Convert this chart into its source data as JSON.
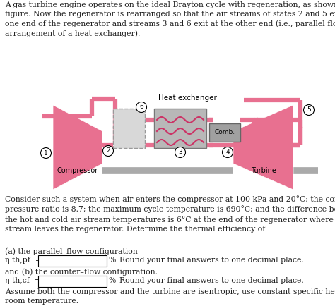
{
  "title_text": "A gas turbine engine operates on the ideal Brayton cycle with regeneration, as shown in the\nfigure. Now the regenerator is rearranged so that the air streams of states 2 and 5 enter at\none end of the regenerator and streams 3 and 6 exit at the other end (i.e., parallel flow\narrangement of a heat exchanger).",
  "body_text1": "Consider such a system when air enters the compressor at 100 kPa and 20°C; the compressor\npressure ratio is 8.7; the maximum cycle temperature is 690°C; and the difference between\nthe hot and cold air stream temperatures is 6°C at the end of the regenerator where the cold\nstream leaves the regenerator. Determine the thermal efficiency of",
  "body_text2": "(a) the parallel–flow configuration",
  "label_eta_pf": "η th,pf  =",
  "label_pct1": "%",
  "label_round1": "  Round your final answers to one decimal place.",
  "body_text3": "and (b) the counter–flow configuration.",
  "label_eta_cf": "η th,cf  =",
  "label_pct2": "%",
  "label_round2": "  Round your final answers to one decimal place.",
  "body_text4": "Assume both the compressor and the turbine are isentropic, use constant specific heats at\nroom temperature.",
  "diagram_label_heat_exchanger": "Heat exchanger",
  "diagram_label_comb": "Comb.",
  "diagram_label_compressor": "Compressor",
  "diagram_label_turbine": "Turbine",
  "pink_color": "#E87090",
  "pink_light": "#F0A0B8",
  "gray_color": "#AAAAAA",
  "gray_dark": "#888888",
  "hx_fill": "#B0B0B0",
  "comb_fill": "#A0A0A0",
  "regen_fill": "#D8D8D8",
  "text_color": "#222222",
  "pipe_lw": 4.5,
  "font_size": 7.8
}
